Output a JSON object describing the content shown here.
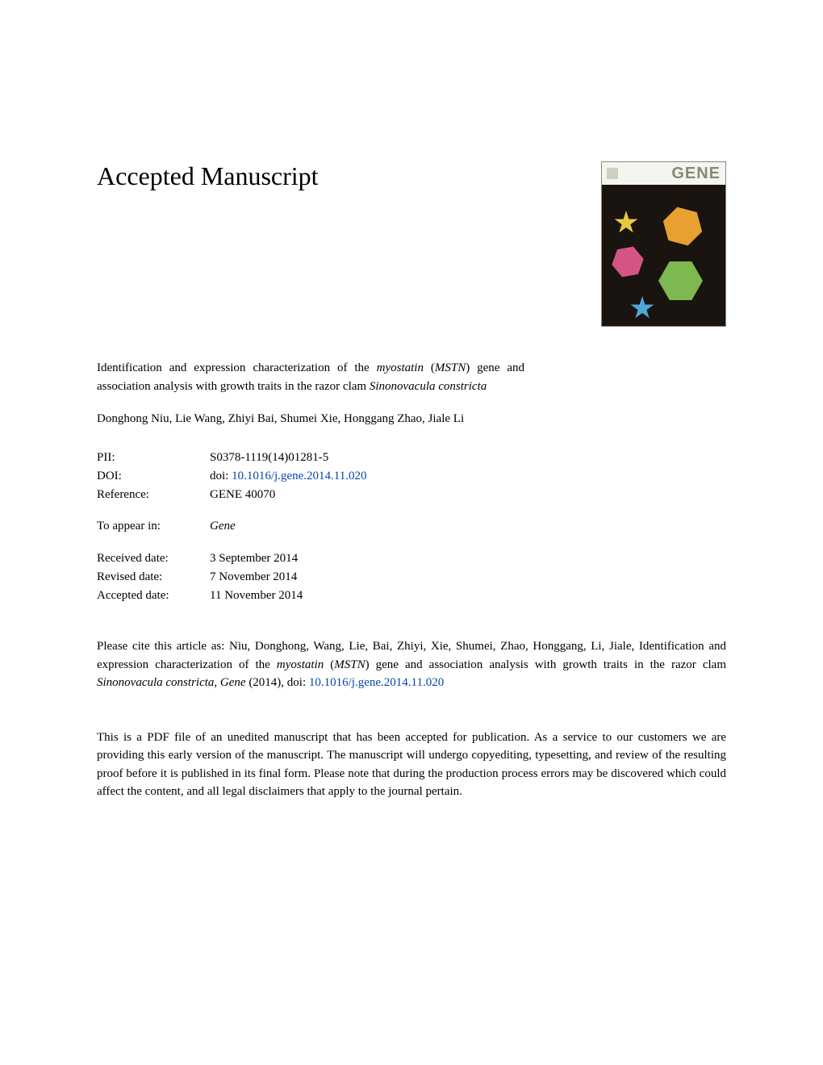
{
  "heading": "Accepted Manuscript",
  "journal_cover": {
    "title": "GENE",
    "background_color": "#1a1410",
    "header_bg": "#f5f5f0",
    "title_color": "#888878"
  },
  "article": {
    "title_pre": "Identification and expression characterization of the ",
    "title_italic1": "myostatin",
    "title_mid": " (",
    "title_italic2": "MSTN",
    "title_post1": ") gene and association analysis with growth traits in the razor clam ",
    "title_italic3": "Sinonovacula constricta"
  },
  "authors": "Donghong Niu, Lie Wang, Zhiyi Bai, Shumei Xie, Honggang Zhao, Jiale Li",
  "meta": {
    "pii_label": "PII:",
    "pii_value": "S0378-1119(14)01281-5",
    "doi_label": "DOI:",
    "doi_prefix": "doi: ",
    "doi_value": "10.1016/j.gene.2014.11.020",
    "reference_label": "Reference:",
    "reference_value": "GENE 40070",
    "appear_label": "To appear in:",
    "appear_value": "Gene",
    "received_label": "Received date:",
    "received_value": "3 September 2014",
    "revised_label": "Revised date:",
    "revised_value": "7 November 2014",
    "accepted_label": "Accepted date:",
    "accepted_value": "11 November 2014"
  },
  "citation": {
    "pre": "Please cite this article as: Niu, Donghong, Wang, Lie, Bai, Zhiyi, Xie, Shumei, Zhao, Honggang, Li, Jiale, Identification and expression characterization of the ",
    "italic1": "myostatin",
    "mid1": " (",
    "italic2": "MSTN",
    "mid2": ") gene and association analysis with growth traits in the razor clam ",
    "italic3": "Sinonovacula constricta",
    "mid3": ", ",
    "italic4": "Gene",
    "post": " (2014), doi: ",
    "doi": "10.1016/j.gene.2014.11.020"
  },
  "disclaimer": "This is a PDF file of an unedited manuscript that has been accepted for publication. As a service to our customers we are providing this early version of the manuscript. The manuscript will undergo copyediting, typesetting, and review of the resulting proof before it is published in its final form. Please note that during the production process errors may be discovered which could affect the content, and all legal disclaimers that apply to the journal pertain.",
  "colors": {
    "text": "#000000",
    "link": "#0645ad",
    "background": "#ffffff"
  },
  "typography": {
    "heading_fontsize": 32,
    "body_fontsize": 15,
    "font_family": "Georgia, Times New Roman, serif"
  }
}
